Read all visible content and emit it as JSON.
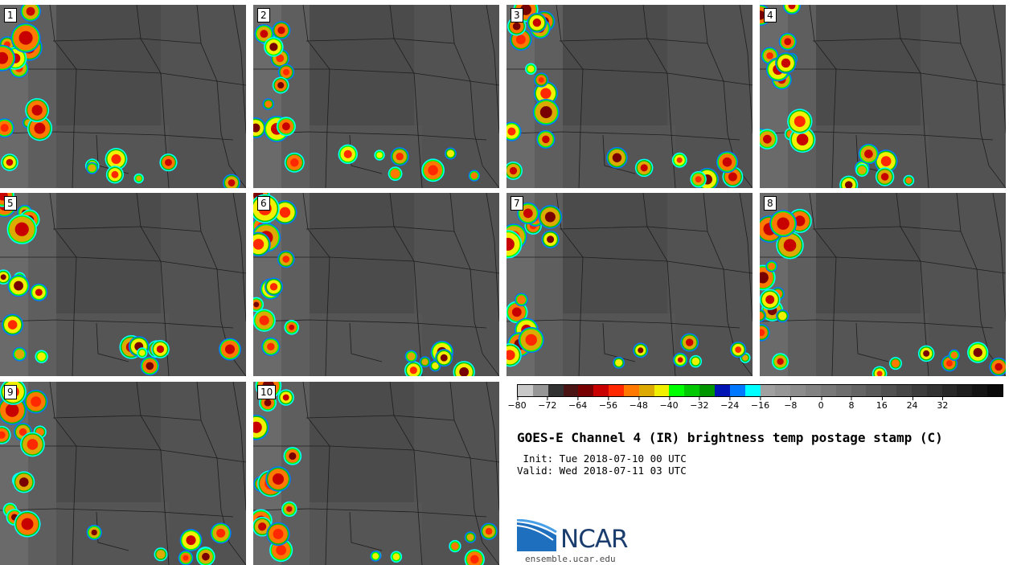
{
  "figure": {
    "title": "GOES-E Channel 4 (IR) brightness temp postage stamp (C)",
    "init_line": " Init: Tue 2018-07-10 00 UTC",
    "valid_line": "Valid: Wed 2018-07-11 03 UTC",
    "logo_text": "NCAR",
    "site_url": "ensemble.ucar.edu"
  },
  "panels": [
    "1",
    "2",
    "3",
    "4",
    "5",
    "6",
    "7",
    "8",
    "9",
    "10"
  ],
  "colorbar": {
    "min": -80,
    "max": 48,
    "step": 4,
    "tick_labels": [
      "−80",
      "−72",
      "−64",
      "−56",
      "−48",
      "−40",
      "−32",
      "−24",
      "−16",
      "−8",
      "0",
      "8",
      "16",
      "24",
      "32"
    ],
    "tick_values": [
      -80,
      -72,
      -64,
      -56,
      -48,
      -40,
      -32,
      -24,
      -16,
      -8,
      0,
      8,
      16,
      24,
      32
    ],
    "colors": [
      "#c8c8c8",
      "#969696",
      "#323232",
      "#4b1414",
      "#780000",
      "#c80000",
      "#ff2800",
      "#ff7800",
      "#dcaa00",
      "#f0f000",
      "#00ff00",
      "#00c800",
      "#009600",
      "#0014b4",
      "#0078ff",
      "#00ffff",
      "#a0a0a0",
      "#969696",
      "#8c8c8c",
      "#828282",
      "#787878",
      "#6e6e6e",
      "#646464",
      "#5a5a5a",
      "#505050",
      "#464646",
      "#3c3c3c",
      "#323232",
      "#282828",
      "#1e1e1e",
      "#141414",
      "#0a0a0a"
    ]
  }
}
